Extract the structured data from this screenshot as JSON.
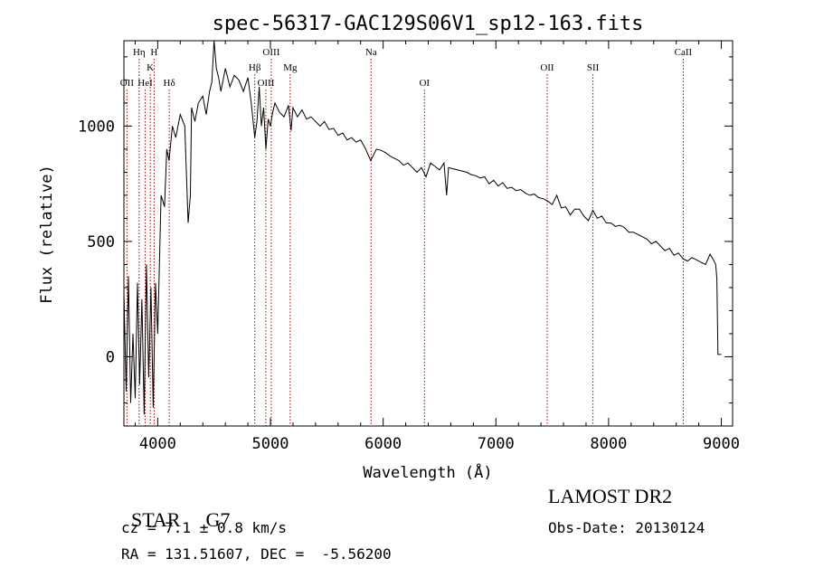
{
  "chart_data": {
    "type": "line",
    "title": "spec-56317-GAC129S06V1_sp12-163.fits",
    "xlabel": "Wavelength (Å)",
    "ylabel": "Flux (relative)",
    "xlim": [
      3700,
      9100
    ],
    "ylim": [
      -300,
      1370
    ],
    "xticks": [
      4000,
      5000,
      6000,
      7000,
      8000,
      9000
    ],
    "yticks": [
      0,
      500,
      1000
    ],
    "grid": false,
    "series": [
      {
        "x": [
          3700,
          3720,
          3740,
          3760,
          3780,
          3800,
          3820,
          3840,
          3860,
          3880,
          3900,
          3920,
          3940,
          3960,
          3980,
          4000,
          4030,
          4060,
          4080,
          4100,
          4130,
          4160,
          4200,
          4240,
          4270,
          4290,
          4300,
          4330,
          4360,
          4400,
          4430,
          4460,
          4480,
          4500,
          4520,
          4540,
          4560,
          4600,
          4640,
          4680,
          4720,
          4760,
          4800,
          4830,
          4861,
          4880,
          4900,
          4920,
          4940,
          4960,
          4980,
          5000,
          5020,
          5040,
          5080,
          5120,
          5160,
          5183,
          5200,
          5240,
          5280,
          5320,
          5360,
          5400,
          5440,
          5480,
          5520,
          5560,
          5600,
          5640,
          5680,
          5720,
          5760,
          5800,
          5840,
          5890,
          5940,
          5980,
          6020,
          6060,
          6100,
          6140,
          6180,
          6220,
          6260,
          6300,
          6340,
          6380,
          6420,
          6460,
          6500,
          6540,
          6563,
          6580,
          6620,
          6660,
          6700,
          6740,
          6780,
          6820,
          6860,
          6900,
          6940,
          6980,
          7020,
          7060,
          7100,
          7140,
          7180,
          7220,
          7260,
          7300,
          7340,
          7380,
          7420,
          7460,
          7500,
          7540,
          7580,
          7620,
          7660,
          7700,
          7740,
          7780,
          7820,
          7860,
          7900,
          7940,
          7980,
          8020,
          8060,
          8100,
          8140,
          8180,
          8220,
          8260,
          8300,
          8340,
          8380,
          8420,
          8460,
          8500,
          8540,
          8580,
          8620,
          8660,
          8700,
          8740,
          8780,
          8820,
          8860,
          8900,
          8930,
          8950,
          8960,
          8970,
          8980,
          8990,
          9000
        ],
        "y": [
          280,
          -150,
          350,
          -200,
          100,
          -180,
          320,
          -120,
          250,
          -250,
          400,
          -90,
          300,
          -220,
          320,
          100,
          700,
          650,
          900,
          850,
          1000,
          950,
          1050,
          1000,
          580,
          700,
          1080,
          1020,
          1100,
          1130,
          1050,
          1150,
          1190,
          1370,
          1250,
          1210,
          1150,
          1250,
          1170,
          1220,
          1200,
          1150,
          1210,
          1100,
          950,
          1020,
          1170,
          1000,
          1080,
          900,
          1030,
          1000,
          1060,
          1100,
          1060,
          1040,
          1090,
          980,
          1080,
          1040,
          1070,
          1030,
          1040,
          1020,
          1000,
          1020,
          985,
          990,
          960,
          970,
          940,
          950,
          930,
          940,
          905,
          850,
          900,
          895,
          885,
          870,
          860,
          850,
          830,
          840,
          820,
          800,
          820,
          780,
          840,
          825,
          810,
          840,
          700,
          820,
          815,
          810,
          805,
          800,
          790,
          785,
          775,
          780,
          750,
          765,
          740,
          755,
          730,
          735,
          720,
          725,
          710,
          700,
          705,
          690,
          685,
          675,
          660,
          700,
          645,
          650,
          615,
          640,
          640,
          610,
          590,
          635,
          600,
          610,
          580,
          580,
          565,
          570,
          560,
          540,
          540,
          530,
          520,
          510,
          490,
          500,
          480,
          460,
          470,
          440,
          450,
          425,
          415,
          430,
          420,
          410,
          400,
          445,
          420,
          400,
          340,
          10,
          10,
          10,
          10
        ]
      }
    ],
    "line_markers": [
      {
        "label": "OII",
        "x": 3727,
        "row": 3
      },
      {
        "label": "Hη",
        "x": 3835,
        "row": 1
      },
      {
        "label": "HeI",
        "x": 3889,
        "row": 3
      },
      {
        "label": "K",
        "x": 3934,
        "row": 2
      },
      {
        "label": "H",
        "x": 3968,
        "row": 1
      },
      {
        "label": "Hδ",
        "x": 4102,
        "row": 3
      },
      {
        "label": "Hβ",
        "x": 4861,
        "row": 2
      },
      {
        "label": "OIII",
        "x": 4959,
        "row": 3
      },
      {
        "label": "OIII",
        "x": 5007,
        "row": 1
      },
      {
        "label": "Mg",
        "x": 5175,
        "row": 2
      },
      {
        "label": "Na",
        "x": 5893,
        "row": 1
      },
      {
        "label": "OI",
        "x": 6366,
        "row": 3
      },
      {
        "label": "OII",
        "x": 7455,
        "row": 2
      },
      {
        "label": "SII",
        "x": 7861,
        "row": 2
      },
      {
        "label": "CaII",
        "x": 8662,
        "row": 1
      }
    ]
  },
  "info": {
    "class_label": "STAR",
    "subclass": "G7",
    "survey": "LAMOST DR2",
    "redshift": "cz = 7.1 ± 0.8 km/s",
    "obs_date": "Obs-Date: 20130124",
    "coords": "RA = 131.51607, DEC =  -5.56200"
  },
  "colors": {
    "line": "#000000",
    "marker": "#b00000"
  }
}
